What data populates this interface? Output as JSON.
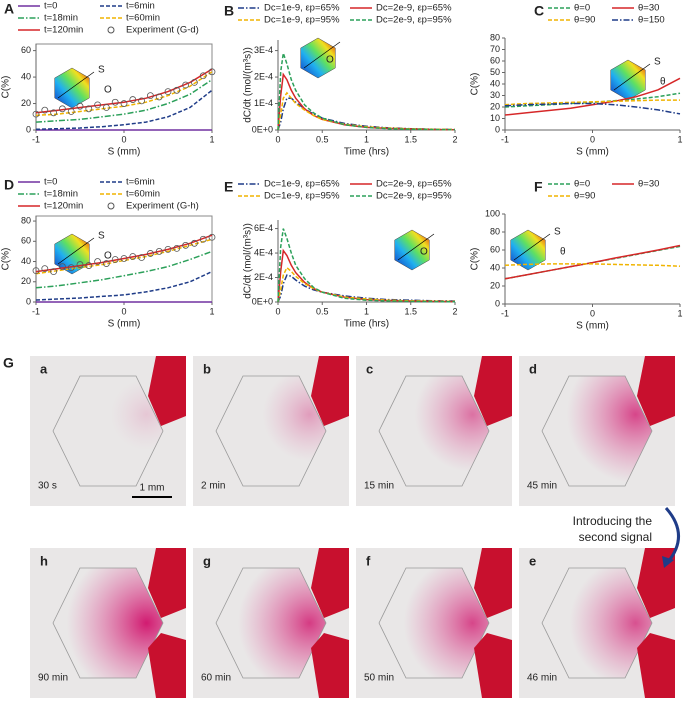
{
  "chart_data": [
    {
      "type": "line",
      "panel_label": "A",
      "x_label": "S (mm)",
      "y_label": "C(%)",
      "inset_labels": [
        "S",
        "O"
      ],
      "xlim": [
        -1,
        1
      ],
      "ylim": [
        0,
        65
      ],
      "xticks": [
        -1,
        0,
        1
      ],
      "yticks": [
        0,
        20,
        40,
        60
      ],
      "x": [
        -1,
        -0.75,
        -0.5,
        -0.25,
        0,
        0.25,
        0.5,
        0.75,
        1
      ],
      "series": [
        {
          "name": "t=0",
          "color": "#7030a0",
          "dash": "solid",
          "values": [
            0,
            0,
            0,
            0,
            0,
            0,
            0,
            0,
            0
          ]
        },
        {
          "name": "t=6min",
          "color": "#1f3c88",
          "dash": "dashed",
          "values": [
            0.5,
            1,
            1.5,
            2.5,
            4,
            6,
            10,
            17,
            30
          ]
        },
        {
          "name": "t=18min",
          "color": "#2ca05a",
          "dash": "dashdot",
          "values": [
            6,
            7,
            8,
            10,
            12,
            15,
            20,
            27,
            38
          ]
        },
        {
          "name": "t=60min",
          "color": "#f0b400",
          "dash": "dashed",
          "values": [
            11,
            12,
            14,
            16,
            18,
            21,
            26,
            33,
            44
          ]
        },
        {
          "name": "t=120min",
          "color": "#d62728",
          "dash": "solid",
          "values": [
            13,
            15,
            17,
            19,
            21,
            24,
            29,
            36,
            46
          ]
        },
        {
          "name": "Experiment (G-d)",
          "color": "#555555",
          "marker": "circle",
          "x": [
            -1,
            -0.9,
            -0.8,
            -0.7,
            -0.6,
            -0.5,
            -0.4,
            -0.3,
            -0.2,
            -0.1,
            0,
            0.1,
            0.2,
            0.3,
            0.4,
            0.5,
            0.6,
            0.7,
            0.8,
            0.9,
            1
          ],
          "values": [
            12,
            15,
            13,
            16,
            14,
            18,
            16,
            19,
            17,
            21,
            20,
            23,
            22,
            26,
            25,
            29,
            30,
            34,
            36,
            41,
            44
          ]
        }
      ]
    },
    {
      "type": "line",
      "panel_label": "B",
      "x_label": "Time (hrs)",
      "y_label": "dC/dt (mol/(m³s))",
      "inset_labels": [
        "O"
      ],
      "xlim": [
        0,
        2
      ],
      "ylim": [
        0,
        0.00034
      ],
      "xticks": [
        0,
        0.5,
        1,
        1.5,
        2
      ],
      "yticks": [
        {
          "value": 0,
          "label": "0E+0"
        },
        {
          "value": 0.0001,
          "label": "1E-4"
        },
        {
          "value": 0.0002,
          "label": "2E-4"
        },
        {
          "value": 0.0003,
          "label": "3E-4"
        }
      ],
      "x": [
        0,
        0.03,
        0.06,
        0.1,
        0.15,
        0.2,
        0.3,
        0.4,
        0.5,
        0.75,
        1,
        1.25,
        1.5,
        1.75,
        2
      ],
      "series": [
        {
          "name": "Dc=1e-9, εp=65%",
          "color": "#1f3c88",
          "dash": "dashdot",
          "values": [
            0,
            3e-05,
            8e-05,
            0.00012,
            0.00012,
            0.000105,
            8e-05,
            6e-05,
            4.5e-05,
            2.5e-05,
            1.4e-05,
            8e-06,
            5e-06,
            3e-06,
            2e-06
          ]
        },
        {
          "name": "Dc=2e-9, εp=65%",
          "color": "#d62728",
          "dash": "solid",
          "values": [
            0,
            0.00013,
            0.00021,
            0.00019,
            0.00015,
            0.00012,
            8e-05,
            5.5e-05,
            4e-05,
            2e-05,
            1e-05,
            6e-06,
            4e-06,
            2e-06,
            1e-06
          ]
        },
        {
          "name": "Dc=1e-9, εp=95%",
          "color": "#f0b400",
          "dash": "dashed",
          "values": [
            0,
            6e-05,
            0.00012,
            0.00014,
            0.00012,
            0.0001,
            7.5e-05,
            5.5e-05,
            4e-05,
            2.2e-05,
            1.2e-05,
            7e-06,
            4e-06,
            3e-06,
            2e-06
          ]
        },
        {
          "name": "Dc=2e-9, εp=95%",
          "color": "#2ca05a",
          "dash": "dashed",
          "values": [
            0,
            0.00022,
            0.00029,
            0.00025,
            0.00019,
            0.00015,
            9.5e-05,
            6.5e-05,
            4.5e-05,
            2e-05,
            1e-05,
            5e-06,
            3e-06,
            2e-06,
            1e-06
          ]
        }
      ]
    },
    {
      "type": "line",
      "panel_label": "C",
      "x_label": "S (mm)",
      "y_label": "C(%)",
      "inset_labels": [
        "S",
        "θ"
      ],
      "xlim": [
        -1,
        1
      ],
      "ylim": [
        0,
        80
      ],
      "xticks": [
        -1,
        0,
        1
      ],
      "yticks": [
        0,
        10,
        20,
        30,
        40,
        50,
        60,
        70,
        80
      ],
      "x": [
        -1,
        -0.75,
        -0.5,
        -0.25,
        0,
        0.25,
        0.5,
        0.75,
        1
      ],
      "series": [
        {
          "name": "θ=0",
          "color": "#2ca05a",
          "dash": "dashed",
          "values": [
            20,
            21,
            22,
            23,
            24,
            25.5,
            27,
            29,
            32
          ]
        },
        {
          "name": "θ=30",
          "color": "#d62728",
          "dash": "solid",
          "values": [
            13,
            15,
            17,
            19,
            22,
            25,
            29,
            35,
            45
          ]
        },
        {
          "name": "θ=90",
          "color": "#f0b400",
          "dash": "dashed",
          "values": [
            22,
            23,
            23.5,
            24,
            24.5,
            25,
            25.5,
            26,
            26
          ]
        },
        {
          "name": "θ=150",
          "color": "#1f3c88",
          "dash": "dashdot",
          "values": [
            21,
            22,
            22.5,
            23,
            23,
            22,
            20,
            17.5,
            14
          ]
        }
      ]
    },
    {
      "type": "line",
      "panel_label": "D",
      "x_label": "S (mm)",
      "y_label": "C(%)",
      "inset_labels": [
        "S",
        "O"
      ],
      "xlim": [
        -1,
        1
      ],
      "ylim": [
        0,
        85
      ],
      "xticks": [
        -1,
        0,
        1
      ],
      "yticks": [
        0,
        20,
        40,
        60,
        80
      ],
      "x": [
        -1,
        -0.75,
        -0.5,
        -0.25,
        0,
        0.25,
        0.5,
        0.75,
        1
      ],
      "series": [
        {
          "name": "t=0",
          "color": "#7030a0",
          "dash": "solid",
          "values": [
            0,
            0,
            0,
            0,
            0,
            0,
            0,
            0,
            0
          ]
        },
        {
          "name": "t=6min",
          "color": "#1f3c88",
          "dash": "dashed",
          "values": [
            2,
            3,
            4,
            5.5,
            7,
            10,
            14,
            20,
            30
          ]
        },
        {
          "name": "t=18min",
          "color": "#2ca05a",
          "dash": "dashdot",
          "values": [
            14,
            16,
            19,
            22,
            26,
            30,
            35,
            42,
            50
          ]
        },
        {
          "name": "t=60min",
          "color": "#f0b400",
          "dash": "dashed",
          "values": [
            28,
            31,
            34,
            37,
            41,
            45,
            50,
            56,
            62
          ]
        },
        {
          "name": "t=120min",
          "color": "#d62728",
          "dash": "solid",
          "values": [
            30,
            33,
            36,
            39,
            43,
            47,
            52,
            58,
            66
          ]
        },
        {
          "name": "Experiment (G-h)",
          "color": "#555555",
          "marker": "circle",
          "x": [
            -1,
            -0.9,
            -0.8,
            -0.7,
            -0.6,
            -0.5,
            -0.4,
            -0.3,
            -0.2,
            -0.1,
            0,
            0.1,
            0.2,
            0.3,
            0.4,
            0.5,
            0.6,
            0.7,
            0.8,
            0.9,
            1
          ],
          "values": [
            31,
            33,
            30,
            35,
            34,
            37,
            36,
            40,
            38,
            42,
            43,
            45,
            44,
            48,
            50,
            52,
            53,
            56,
            58,
            62,
            64
          ]
        }
      ]
    },
    {
      "type": "line",
      "panel_label": "E",
      "x_label": "Time (hrs)",
      "y_label": "dC/dt (mol/(m³s))",
      "inset_labels": [
        "O"
      ],
      "xlim": [
        0,
        2
      ],
      "ylim": [
        0,
        0.00067
      ],
      "xticks": [
        0,
        0.5,
        1,
        1.5,
        2
      ],
      "yticks": [
        {
          "value": 0,
          "label": "0E+0"
        },
        {
          "value": 0.0002,
          "label": "2E-4"
        },
        {
          "value": 0.0004,
          "label": "4E-4"
        },
        {
          "value": 0.0006,
          "label": "6E-4"
        }
      ],
      "x": [
        0,
        0.03,
        0.06,
        0.1,
        0.15,
        0.2,
        0.3,
        0.4,
        0.5,
        0.75,
        1,
        1.25,
        1.5,
        1.75,
        2
      ],
      "series": [
        {
          "name": "Dc=1e-9, εp=65%",
          "color": "#1f3c88",
          "dash": "dashdot",
          "values": [
            0,
            5e-05,
            0.00015,
            0.00022,
            0.00021,
            0.00018,
            0.00013,
            0.0001,
            8e-05,
            5e-05,
            3e-05,
            2e-05,
            1.5e-05,
            1e-05,
            8e-06
          ]
        },
        {
          "name": "Dc=2e-9, εp=65%",
          "color": "#d62728",
          "dash": "solid",
          "values": [
            0,
            0.00025,
            0.00042,
            0.00038,
            0.0003,
            0.00024,
            0.00016,
            0.00011,
            8e-05,
            4e-05,
            2e-05,
            1.2e-05,
            8e-06,
            5e-06,
            3e-06
          ]
        },
        {
          "name": "Dc=1e-9, εp=95%",
          "color": "#f0b400",
          "dash": "dashed",
          "values": [
            0,
            0.0001,
            0.00022,
            0.00028,
            0.00025,
            0.00021,
            0.00015,
            0.00011,
            8e-05,
            4e-05,
            2.5e-05,
            1.5e-05,
            1e-05,
            7e-06,
            5e-06
          ]
        },
        {
          "name": "Dc=2e-9, εp=95%",
          "color": "#2ca05a",
          "dash": "dashed",
          "values": [
            0,
            0.00045,
            0.0006,
            0.00052,
            0.0004,
            0.0003,
            0.00019,
            0.00012,
            8e-05,
            3e-05,
            1.5e-05,
            8e-06,
            5e-06,
            3e-06,
            2e-06
          ]
        }
      ]
    },
    {
      "type": "line",
      "panel_label": "F",
      "x_label": "S (mm)",
      "y_label": "C(%)",
      "inset_labels": [
        "S",
        "θ"
      ],
      "xlim": [
        -1,
        1
      ],
      "ylim": [
        0,
        100
      ],
      "xticks": [
        -1,
        0,
        1
      ],
      "yticks": [
        0,
        20,
        40,
        60,
        80,
        100
      ],
      "x": [
        -1,
        -0.75,
        -0.5,
        -0.25,
        0,
        0.25,
        0.5,
        0.75,
        1
      ],
      "series": [
        {
          "name": "θ=0",
          "color": "#2ca05a",
          "dash": "dashed",
          "values": [
            28,
            32.5,
            37,
            41.5,
            46,
            50.5,
            55,
            59.5,
            64
          ]
        },
        {
          "name": "θ=30",
          "color": "#d62728",
          "dash": "solid",
          "values": [
            28,
            32.5,
            37,
            41.5,
            46,
            51,
            55.5,
            60,
            65
          ]
        },
        {
          "name": "θ=90",
          "color": "#f0b400",
          "dash": "dashed",
          "values": [
            43,
            44,
            44.5,
            44.5,
            44.5,
            44,
            43.5,
            43,
            42
          ]
        }
      ]
    }
  ],
  "photos": {
    "label": "G",
    "scale_bar": "1 mm",
    "annotation": [
      "Introducing the",
      "second signal"
    ],
    "panels": [
      {
        "letter": "a",
        "time": "30 s"
      },
      {
        "letter": "b",
        "time": "2 min"
      },
      {
        "letter": "c",
        "time": "15 min"
      },
      {
        "letter": "d",
        "time": "45 min"
      },
      {
        "letter": "h",
        "time": "90 min"
      },
      {
        "letter": "g",
        "time": "60 min"
      },
      {
        "letter": "f",
        "time": "50 min"
      },
      {
        "letter": "e",
        "time": "46 min"
      }
    ]
  }
}
